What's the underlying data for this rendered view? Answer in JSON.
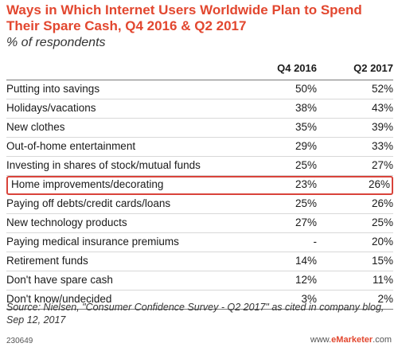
{
  "chart_data": {
    "type": "table",
    "title": "Ways in Which Internet Users Worldwide Plan to Spend Their Spare Cash, Q4 2016 & Q2 2017",
    "subtitle": "% of respondents",
    "columns": [
      "Q4 2016",
      "Q2 2017"
    ],
    "rows": [
      {
        "label": "Putting into savings",
        "values": [
          "50%",
          "52%"
        ]
      },
      {
        "label": "Holidays/vacations",
        "values": [
          "38%",
          "43%"
        ]
      },
      {
        "label": "New clothes",
        "values": [
          "35%",
          "39%"
        ]
      },
      {
        "label": "Out-of-home entertainment",
        "values": [
          "29%",
          "33%"
        ]
      },
      {
        "label": "Investing in shares of stock/mutual funds",
        "values": [
          "25%",
          "27%"
        ]
      },
      {
        "label": "Home improvements/decorating",
        "values": [
          "23%",
          "26%"
        ],
        "highlighted": true
      },
      {
        "label": "Paying off debts/credit cards/loans",
        "values": [
          "25%",
          "26%"
        ]
      },
      {
        "label": "New technology products",
        "values": [
          "27%",
          "25%"
        ]
      },
      {
        "label": "Paying medical insurance premiums",
        "values": [
          "-",
          "20%"
        ]
      },
      {
        "label": "Retirement funds",
        "values": [
          "14%",
          "15%"
        ]
      },
      {
        "label": "Don't have spare cash",
        "values": [
          "12%",
          "11%"
        ]
      },
      {
        "label": "Don't know/undecided",
        "values": [
          "3%",
          "2%"
        ]
      }
    ],
    "highlight_color": "#d9433a"
  },
  "source": "Source: Nielsen, \"Consumer Confidence Survey - Q2 2017\" as cited in company blog, Sep 12, 2017",
  "footer_id": "230649",
  "brand": {
    "prefix": "www.",
    "name": "eMarketer",
    "suffix": ".com"
  },
  "colors": {
    "title": "#e2472f",
    "accent": "#e2472f"
  }
}
